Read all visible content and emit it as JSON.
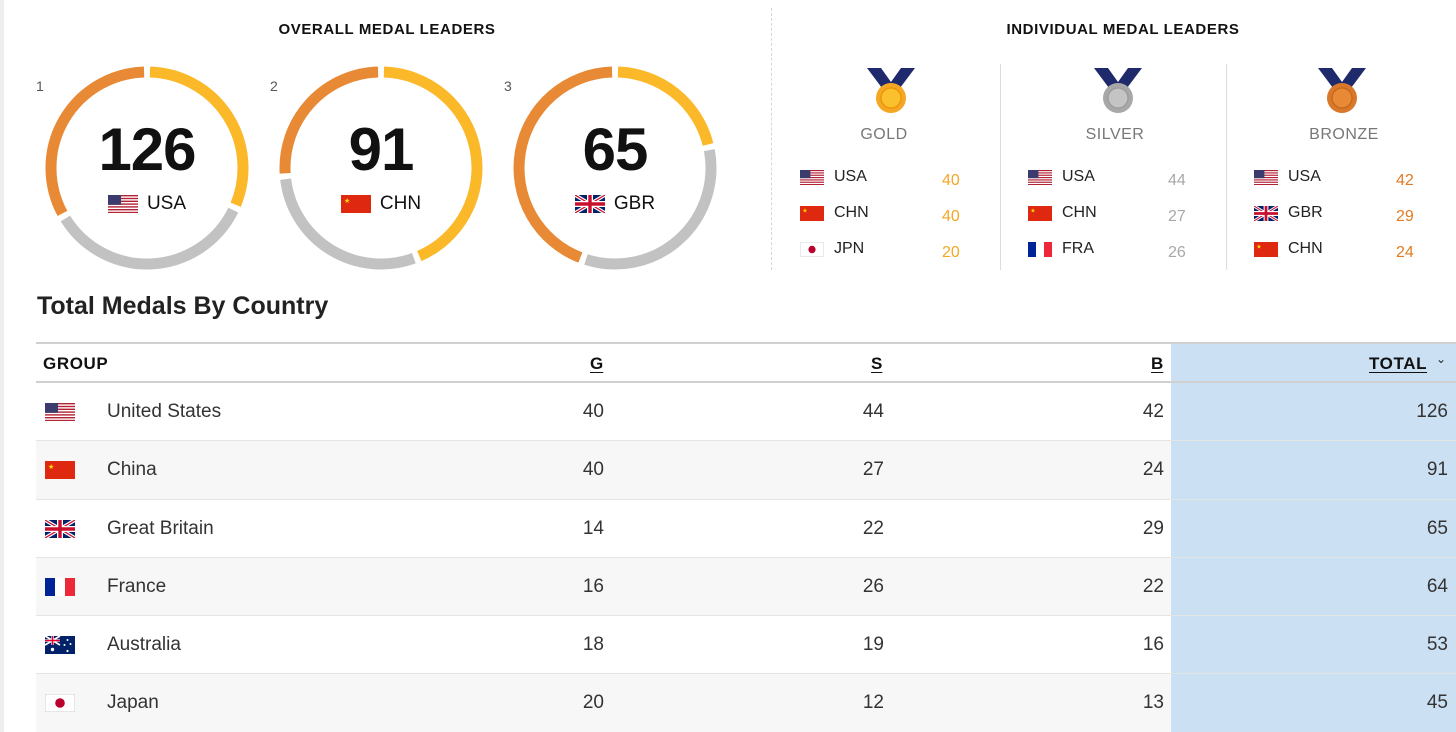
{
  "overall": {
    "title": "OVERALL MEDAL LEADERS",
    "leaders": [
      {
        "rank": "1",
        "total": "126",
        "code": "USA",
        "gold": 40,
        "silver": 44,
        "bronze": 42
      },
      {
        "rank": "2",
        "total": "91",
        "code": "CHN",
        "gold": 40,
        "silver": 27,
        "bronze": 24
      },
      {
        "rank": "3",
        "total": "65",
        "code": "GBR",
        "gold": 14,
        "silver": 22,
        "bronze": 29
      }
    ]
  },
  "individual": {
    "title": "INDIVIDUAL MEDAL LEADERS",
    "columns": [
      {
        "type": "GOLD",
        "rows": [
          {
            "code": "USA",
            "count": "40"
          },
          {
            "code": "CHN",
            "count": "40"
          },
          {
            "code": "JPN",
            "count": "20"
          }
        ]
      },
      {
        "type": "SILVER",
        "rows": [
          {
            "code": "USA",
            "count": "44"
          },
          {
            "code": "CHN",
            "count": "27"
          },
          {
            "code": "FRA",
            "count": "26"
          }
        ]
      },
      {
        "type": "BRONZE",
        "rows": [
          {
            "code": "USA",
            "count": "42"
          },
          {
            "code": "GBR",
            "count": "29"
          },
          {
            "code": "CHN",
            "count": "24"
          }
        ]
      }
    ]
  },
  "table": {
    "title": "Total Medals By Country",
    "headers": {
      "group": "GROUP",
      "g": "G",
      "s": "S",
      "b": "B",
      "total": "TOTAL"
    },
    "sort_icon": "chevron-down-icon",
    "rows": [
      {
        "country": "United States",
        "g": "40",
        "s": "44",
        "b": "42",
        "total": "126"
      },
      {
        "country": "China",
        "g": "40",
        "s": "27",
        "b": "24",
        "total": "91"
      },
      {
        "country": "Great Britain",
        "g": "14",
        "s": "22",
        "b": "29",
        "total": "65"
      },
      {
        "country": "France",
        "g": "16",
        "s": "26",
        "b": "22",
        "total": "64"
      },
      {
        "country": "Australia",
        "g": "18",
        "s": "19",
        "b": "16",
        "total": "53"
      },
      {
        "country": "Japan",
        "g": "20",
        "s": "12",
        "b": "13",
        "total": "45"
      }
    ]
  },
  "colors": {
    "gold": "#f5a623",
    "gold_ring": "#fbb829",
    "silver": "#a8a8a8",
    "silver_ring": "#c2c2c2",
    "bronze": "#e07b24",
    "bronze_ring": "#e88a35",
    "total_column": "#cce0f4"
  }
}
